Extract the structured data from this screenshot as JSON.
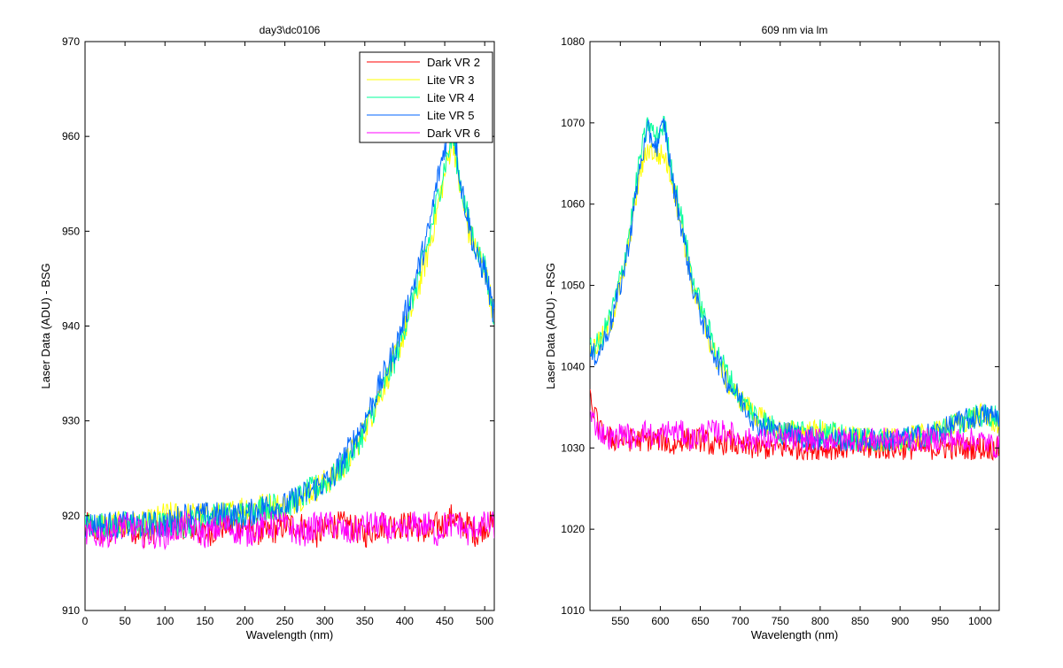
{
  "chart_data": [
    {
      "type": "line",
      "title": "day3\\dc0106",
      "xlabel": "Wavelength (nm)",
      "ylabel": "Laser Data (ADU) - BSG",
      "xlim": [
        0,
        512
      ],
      "ylim": [
        910,
        970
      ],
      "xticks": [
        0,
        50,
        100,
        150,
        200,
        250,
        300,
        350,
        400,
        450,
        500
      ],
      "yticks": [
        910,
        920,
        930,
        940,
        950,
        960,
        970
      ],
      "xtick_labels": [
        "0",
        "50",
        "100",
        "150",
        "200",
        "250",
        "300",
        "350",
        "400",
        "450",
        "500"
      ],
      "ytick_labels": [
        "910",
        "920",
        "930",
        "940",
        "950",
        "960",
        "970"
      ],
      "grid": false,
      "legend_position": "top-right",
      "x": [
        0,
        25,
        50,
        75,
        100,
        125,
        150,
        175,
        200,
        225,
        250,
        270,
        290,
        310,
        330,
        350,
        370,
        390,
        410,
        430,
        440,
        450,
        460,
        470,
        480,
        490,
        500,
        512
      ],
      "series": [
        {
          "name": "Dark VR 2",
          "color": "#ff0000",
          "values": [
            919,
            918,
            919,
            918,
            919,
            919,
            918,
            919,
            919,
            918,
            919,
            919,
            918,
            919,
            919,
            918,
            919,
            919,
            919,
            918,
            919,
            919,
            920,
            919,
            919,
            918,
            919,
            919
          ]
        },
        {
          "name": "Lite VR 3",
          "color": "#ffff00",
          "values": [
            919,
            919,
            919,
            919,
            920,
            920,
            920,
            920,
            921,
            921,
            921,
            922,
            923,
            924,
            926,
            929,
            933,
            937,
            942,
            948,
            952,
            956,
            960,
            954,
            950,
            948,
            946,
            941
          ]
        },
        {
          "name": "Lite VR 4",
          "color": "#00ff99",
          "values": [
            919,
            919,
            919,
            919,
            919,
            919,
            920,
            920,
            920,
            921,
            921,
            922,
            923,
            924,
            926,
            929,
            933,
            937,
            943,
            949,
            953,
            957,
            960,
            955,
            951,
            948,
            946,
            941
          ]
        },
        {
          "name": "Lite VR 5",
          "color": "#0066ff",
          "values": [
            919,
            919,
            919,
            919,
            919,
            920,
            920,
            920,
            920,
            921,
            921,
            922,
            923,
            924,
            927,
            930,
            934,
            938,
            944,
            950,
            955,
            959,
            962,
            955,
            951,
            947,
            946,
            941
          ]
        },
        {
          "name": "Dark VR 6",
          "color": "#ff00ff",
          "values": [
            918,
            918,
            919,
            918,
            918,
            919,
            918,
            919,
            918,
            919,
            919,
            918,
            919,
            919,
            918,
            919,
            919,
            918,
            919,
            919,
            918,
            919,
            919,
            919,
            918,
            919,
            919,
            919
          ]
        }
      ]
    },
    {
      "type": "line",
      "title": "609 nm via lm",
      "xlabel": "Wavelength (nm)",
      "ylabel": "Laser Data (ADU) - RSG",
      "xlim": [
        512,
        1024
      ],
      "ylim": [
        1010,
        1080
      ],
      "xticks": [
        550,
        600,
        650,
        700,
        750,
        800,
        850,
        900,
        950,
        1000
      ],
      "yticks": [
        1010,
        1020,
        1030,
        1040,
        1050,
        1060,
        1070,
        1080
      ],
      "xtick_labels": [
        "550",
        "600",
        "650",
        "700",
        "750",
        "800",
        "850",
        "900",
        "950",
        "1000"
      ],
      "ytick_labels": [
        "1010",
        "1020",
        "1030",
        "1040",
        "1050",
        "1060",
        "1070",
        "1080"
      ],
      "grid": false,
      "x": [
        512,
        525,
        540,
        555,
        565,
        575,
        585,
        595,
        605,
        615,
        625,
        640,
        655,
        670,
        685,
        700,
        720,
        750,
        800,
        850,
        900,
        950,
        970,
        1000,
        1024
      ],
      "series": [
        {
          "name": "Dark VR 2",
          "color": "#ff0000",
          "values": [
            1036,
            1032,
            1031,
            1031,
            1031,
            1031,
            1031,
            1031,
            1031,
            1030,
            1031,
            1031,
            1031,
            1030,
            1031,
            1030,
            1030,
            1030,
            1030,
            1030,
            1030,
            1030,
            1030,
            1030,
            1030
          ]
        },
        {
          "name": "Lite VR 3",
          "color": "#ffff00",
          "values": [
            1042,
            1043,
            1046,
            1052,
            1058,
            1064,
            1067,
            1066,
            1066,
            1063,
            1058,
            1050,
            1045,
            1041,
            1038,
            1036,
            1034,
            1032,
            1032,
            1031,
            1031,
            1032,
            1033,
            1034,
            1033
          ]
        },
        {
          "name": "Lite VR 4",
          "color": "#00ff99",
          "values": [
            1042,
            1043,
            1047,
            1053,
            1059,
            1066,
            1070,
            1068,
            1070,
            1064,
            1059,
            1051,
            1046,
            1042,
            1039,
            1036,
            1034,
            1032,
            1032,
            1031,
            1031,
            1032,
            1033,
            1034,
            1034
          ]
        },
        {
          "name": "Lite VR 5",
          "color": "#0066ff",
          "values": [
            1041,
            1042,
            1046,
            1052,
            1058,
            1065,
            1069,
            1067,
            1070,
            1063,
            1058,
            1050,
            1045,
            1041,
            1038,
            1036,
            1033,
            1032,
            1031,
            1031,
            1031,
            1032,
            1033,
            1034,
            1034
          ]
        },
        {
          "name": "Dark VR 6",
          "color": "#ff00ff",
          "values": [
            1034,
            1032,
            1031,
            1032,
            1031,
            1032,
            1032,
            1031,
            1032,
            1032,
            1032,
            1031,
            1032,
            1032,
            1032,
            1031,
            1031,
            1031,
            1031,
            1031,
            1031,
            1031,
            1031,
            1031,
            1030
          ]
        }
      ]
    }
  ]
}
